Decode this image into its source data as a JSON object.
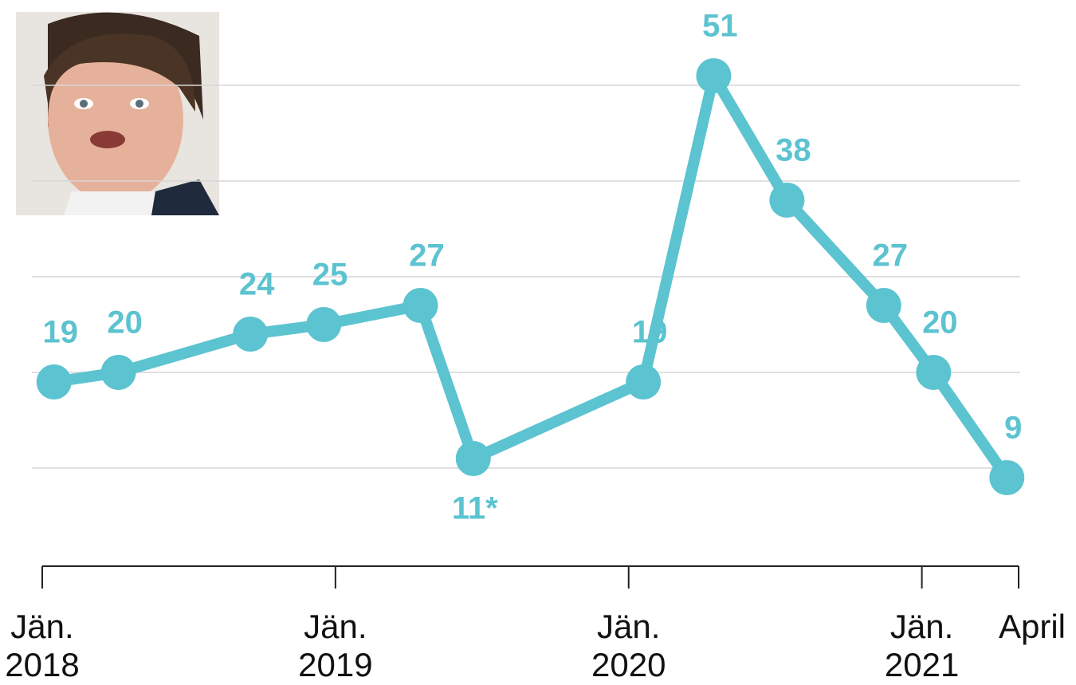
{
  "chart_data": {
    "type": "line",
    "x": [
      2018.04,
      2018.26,
      2018.71,
      2018.96,
      2019.29,
      2019.47,
      2020.05,
      2020.29,
      2020.54,
      2020.87,
      2021.04,
      2021.29
    ],
    "series": [
      {
        "color": "#5cc3d0",
        "values": [
          19,
          20,
          24,
          25,
          27,
          11,
          19,
          51,
          38,
          27,
          20,
          9
        ],
        "value_labels": [
          "19",
          "20",
          "24",
          "25",
          "27",
          "11*",
          "19",
          "51",
          "38",
          "27",
          "20",
          "9"
        ]
      }
    ],
    "xlim": [
      2018,
      2021.33
    ],
    "xticks": [
      {
        "value": 2018,
        "label": "Jän. 2018"
      },
      {
        "value": 2019,
        "label": "Jän. 2019"
      },
      {
        "value": 2020,
        "label": "Jän. 2020"
      },
      {
        "value": 2021,
        "label": "Jän. 2021"
      },
      {
        "value": 2021.33,
        "label": "April"
      }
    ],
    "ylim": [
      0,
      60
    ],
    "yticks": [
      10,
      20,
      30,
      40,
      50
    ],
    "grid": true
  }
}
